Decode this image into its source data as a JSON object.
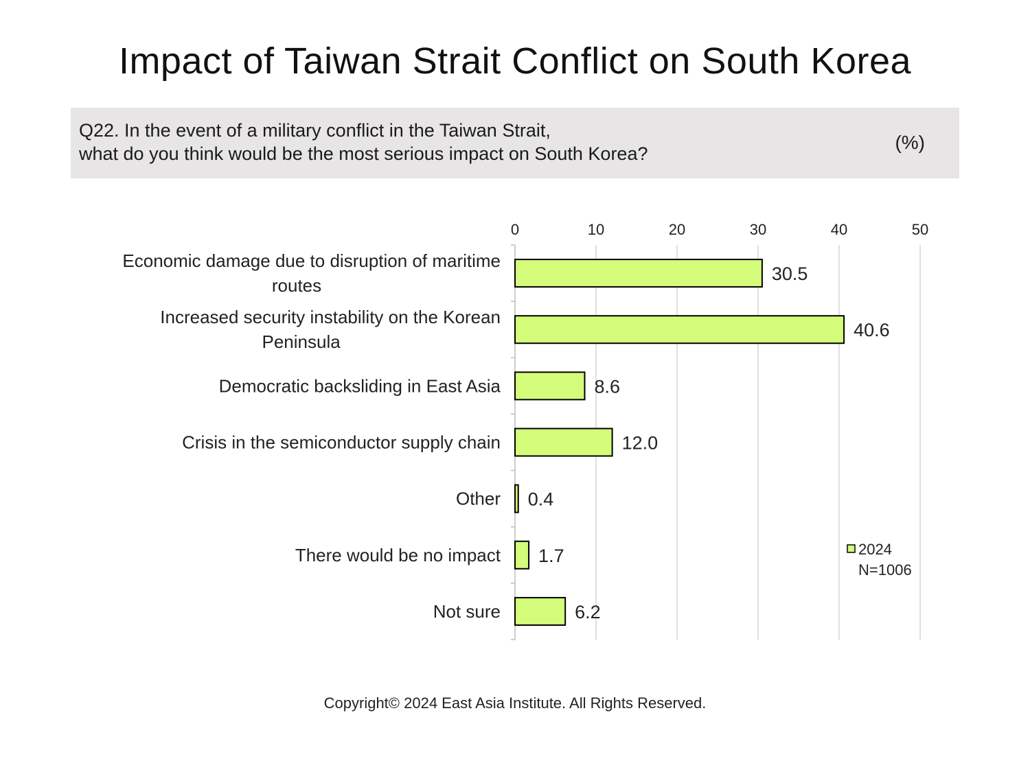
{
  "title": "Impact of Taiwan Strait Conflict on South Korea",
  "question": {
    "line1": "Q22. In the event of a military conflict in the Taiwan Strait,",
    "line2": "what do you think would be the most serious impact on South Korea?",
    "unit": "(%)"
  },
  "chart_data": {
    "type": "bar",
    "orientation": "horizontal",
    "categories": [
      [
        "Economic damage due to disruption of maritime",
        "routes"
      ],
      [
        "Increased security instability on the Korean",
        "Peninsula"
      ],
      [
        "Democratic backsliding in East Asia"
      ],
      [
        "Crisis in the semiconductor supply chain"
      ],
      [
        "Other"
      ],
      [
        "There would be no impact"
      ],
      [
        "Not sure"
      ]
    ],
    "series": [
      {
        "name": "2024",
        "values": [
          30.5,
          40.6,
          8.6,
          12.0,
          0.4,
          1.7,
          6.2
        ]
      }
    ],
    "value_labels": [
      "30.5",
      "40.6",
      "8.6",
      "12.0",
      "0.4",
      "1.7",
      "6.2"
    ],
    "xlim": [
      0,
      50
    ],
    "xticks": [
      0,
      10,
      20,
      30,
      40,
      50
    ],
    "grid": true,
    "legend_placement": "bottom-right",
    "legend_note": "N=1006",
    "bar_color": "#d4fb79",
    "bar_stroke": "#000000",
    "grid_color": "#d6d6d6"
  },
  "footer": {
    "copyright": "Copyright© 2024 East Asia Institute. All Rights Reserved."
  }
}
